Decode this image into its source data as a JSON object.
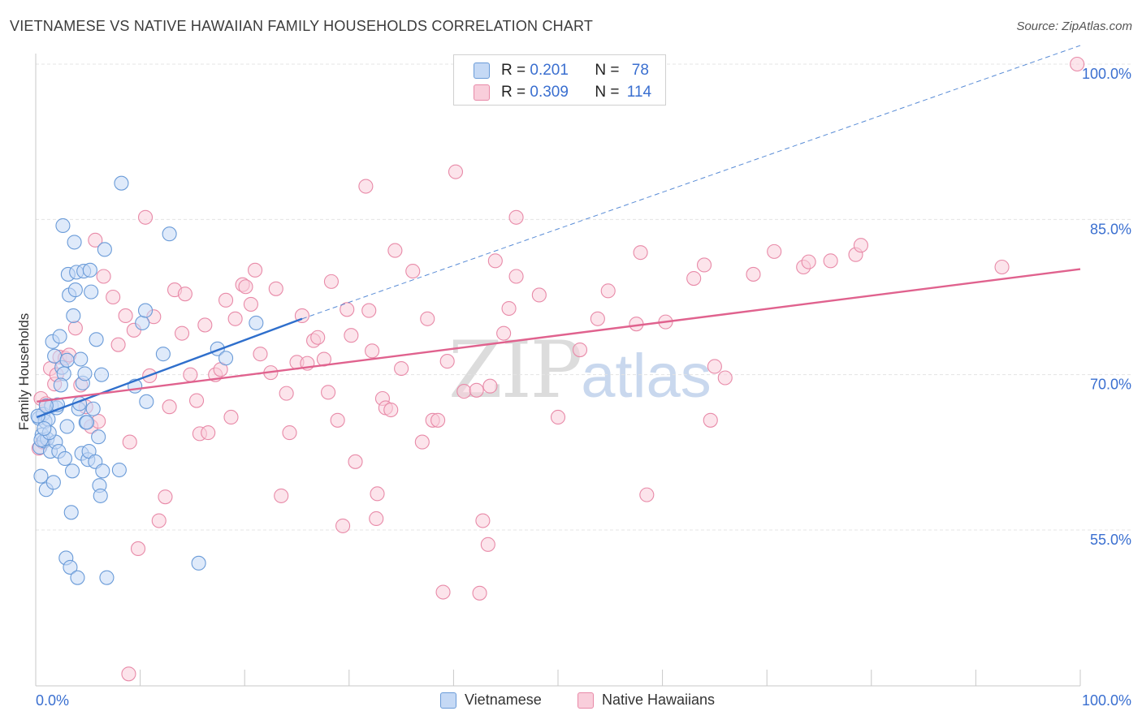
{
  "header": {
    "title": "VIETNAMESE VS NATIVE HAWAIIAN FAMILY HOUSEHOLDS CORRELATION CHART",
    "source": "Source: ZipAtlas.com"
  },
  "watermark": {
    "zip": "ZIP",
    "atlas": "atlas"
  },
  "legend_top": {
    "rows": [
      {
        "r_label": "R =",
        "r_value": "0.201",
        "n_label": "N =",
        "n_value": "78"
      },
      {
        "r_label": "R =",
        "r_value": "0.309",
        "n_label": "N =",
        "n_value": "114"
      }
    ]
  },
  "colors": {
    "vietnamese_fill": "#c5d9f5",
    "vietnamese_stroke": "#6a9bd8",
    "vietnamese_line": "#2f6fcc",
    "hawaiian_fill": "#f9cedb",
    "hawaiian_stroke": "#e88aa8",
    "hawaiian_line": "#e0628e",
    "tick_label": "#3a6fd0",
    "grid": "#e4e4e4"
  },
  "chart_data": {
    "type": "scatter",
    "title": "VIETNAMESE VS NATIVE HAWAIIAN FAMILY HOUSEHOLDS CORRELATION CHART",
    "xlabel": "",
    "ylabel": "Family Households",
    "xlim": [
      0,
      100
    ],
    "ylim": [
      38,
      102
    ],
    "x_tick_labels": [
      "0.0%",
      "100.0%"
    ],
    "y_ticks": [
      55,
      70,
      85,
      100
    ],
    "y_tick_labels": [
      "55.0%",
      "70.0%",
      "85.0%",
      "100.0%"
    ],
    "grid": "horizontal dashed",
    "legend": "bottom-center",
    "series": [
      {
        "name": "Vietnamese",
        "r": 0.201,
        "n": 78,
        "trend": {
          "x0": 0.1,
          "y0": 65.9,
          "x1": 25.5,
          "y1": 75.4,
          "dash_x1": 100,
          "dash_y1": 101.8
        },
        "points": [
          [
            0.3,
            65.8
          ],
          [
            0.4,
            63.0
          ],
          [
            0.5,
            60.2
          ],
          [
            0.6,
            64.2
          ],
          [
            0.7,
            66.2
          ],
          [
            0.8,
            63.6
          ],
          [
            0.9,
            65.5
          ],
          [
            1.0,
            58.9
          ],
          [
            1.1,
            63.8
          ],
          [
            1.2,
            65.7
          ],
          [
            1.4,
            62.6
          ],
          [
            1.5,
            67.0
          ],
          [
            1.6,
            73.2
          ],
          [
            1.7,
            59.6
          ],
          [
            1.8,
            71.8
          ],
          [
            1.9,
            63.5
          ],
          [
            2.0,
            66.8
          ],
          [
            2.1,
            67.1
          ],
          [
            2.2,
            62.6
          ],
          [
            2.3,
            73.7
          ],
          [
            2.5,
            70.7
          ],
          [
            2.6,
            84.4
          ],
          [
            2.7,
            70.1
          ],
          [
            2.8,
            61.9
          ],
          [
            2.9,
            52.3
          ],
          [
            3.0,
            71.4
          ],
          [
            3.1,
            79.7
          ],
          [
            3.2,
            77.7
          ],
          [
            3.3,
            51.4
          ],
          [
            3.4,
            56.7
          ],
          [
            3.5,
            60.7
          ],
          [
            3.6,
            75.7
          ],
          [
            3.7,
            82.8
          ],
          [
            3.8,
            78.2
          ],
          [
            3.9,
            79.9
          ],
          [
            4.0,
            50.4
          ],
          [
            4.1,
            66.7
          ],
          [
            4.2,
            67.2
          ],
          [
            4.3,
            71.5
          ],
          [
            4.4,
            62.4
          ],
          [
            4.5,
            69.2
          ],
          [
            4.6,
            80.0
          ],
          [
            4.7,
            70.1
          ],
          [
            4.8,
            65.4
          ],
          [
            4.9,
            65.4
          ],
          [
            5.0,
            61.8
          ],
          [
            5.1,
            62.6
          ],
          [
            5.2,
            80.1
          ],
          [
            5.3,
            78.0
          ],
          [
            5.5,
            66.7
          ],
          [
            5.7,
            61.6
          ],
          [
            5.8,
            73.4
          ],
          [
            6.0,
            64.0
          ],
          [
            6.1,
            59.3
          ],
          [
            6.2,
            58.3
          ],
          [
            6.3,
            70.0
          ],
          [
            6.4,
            60.7
          ],
          [
            6.6,
            82.1
          ],
          [
            6.8,
            50.4
          ],
          [
            8.0,
            60.8
          ],
          [
            8.2,
            88.5
          ],
          [
            9.5,
            68.9
          ],
          [
            10.2,
            75.0
          ],
          [
            10.5,
            76.2
          ],
          [
            10.6,
            67.4
          ],
          [
            12.2,
            72.0
          ],
          [
            12.8,
            83.6
          ],
          [
            15.6,
            51.8
          ],
          [
            17.4,
            72.5
          ],
          [
            18.2,
            71.6
          ],
          [
            21.1,
            75.0
          ],
          [
            0.2,
            66.0
          ],
          [
            0.5,
            63.7
          ],
          [
            1.3,
            64.4
          ],
          [
            2.4,
            69.0
          ],
          [
            3.0,
            65.0
          ],
          [
            1.0,
            67.0
          ],
          [
            0.8,
            64.8
          ]
        ]
      },
      {
        "name": "Native Hawaiians",
        "r": 0.309,
        "n": 114,
        "trend": {
          "x0": 0.1,
          "y0": 67.4,
          "x1": 100,
          "y1": 80.2
        },
        "points": [
          [
            0.3,
            62.9
          ],
          [
            0.5,
            67.7
          ],
          [
            0.7,
            63.5
          ],
          [
            1.0,
            67.2
          ],
          [
            1.4,
            70.6
          ],
          [
            1.8,
            69.1
          ],
          [
            2.3,
            71.7
          ],
          [
            2.8,
            71.6
          ],
          [
            3.2,
            71.9
          ],
          [
            3.8,
            74.5
          ],
          [
            4.3,
            69.0
          ],
          [
            4.8,
            66.9
          ],
          [
            5.3,
            65.0
          ],
          [
            5.7,
            83.0
          ],
          [
            6.5,
            79.5
          ],
          [
            7.4,
            77.5
          ],
          [
            7.9,
            72.9
          ],
          [
            8.6,
            75.7
          ],
          [
            8.9,
            41.1
          ],
          [
            9.0,
            63.5
          ],
          [
            9.4,
            74.3
          ],
          [
            9.8,
            53.2
          ],
          [
            10.5,
            85.2
          ],
          [
            10.9,
            69.9
          ],
          [
            11.3,
            75.6
          ],
          [
            11.8,
            55.9
          ],
          [
            12.4,
            58.2
          ],
          [
            12.8,
            66.9
          ],
          [
            13.3,
            78.2
          ],
          [
            14.0,
            74.0
          ],
          [
            14.3,
            77.8
          ],
          [
            14.8,
            70.0
          ],
          [
            15.4,
            67.5
          ],
          [
            15.7,
            64.3
          ],
          [
            16.2,
            74.8
          ],
          [
            16.5,
            64.4
          ],
          [
            17.2,
            70.0
          ],
          [
            17.7,
            70.5
          ],
          [
            18.2,
            77.2
          ],
          [
            18.7,
            65.9
          ],
          [
            19.1,
            75.4
          ],
          [
            19.8,
            78.7
          ],
          [
            20.1,
            78.5
          ],
          [
            20.6,
            76.8
          ],
          [
            21.0,
            80.1
          ],
          [
            21.5,
            72.0
          ],
          [
            22.5,
            70.2
          ],
          [
            23.0,
            78.3
          ],
          [
            23.5,
            58.3
          ],
          [
            24.0,
            68.2
          ],
          [
            24.3,
            64.4
          ],
          [
            25.0,
            71.2
          ],
          [
            25.5,
            75.7
          ],
          [
            26.0,
            71.1
          ],
          [
            26.6,
            73.3
          ],
          [
            27.0,
            73.6
          ],
          [
            27.6,
            71.5
          ],
          [
            28.0,
            68.3
          ],
          [
            28.3,
            79.0
          ],
          [
            28.9,
            65.6
          ],
          [
            29.4,
            55.4
          ],
          [
            29.8,
            76.3
          ],
          [
            30.2,
            73.8
          ],
          [
            30.6,
            61.6
          ],
          [
            31.6,
            88.2
          ],
          [
            31.9,
            76.2
          ],
          [
            32.2,
            72.3
          ],
          [
            32.6,
            56.1
          ],
          [
            32.7,
            58.5
          ],
          [
            33.2,
            67.7
          ],
          [
            33.5,
            66.8
          ],
          [
            34.0,
            66.6
          ],
          [
            34.4,
            82.0
          ],
          [
            35.0,
            70.6
          ],
          [
            36.1,
            80.0
          ],
          [
            37.0,
            63.5
          ],
          [
            37.5,
            75.4
          ],
          [
            38.0,
            65.6
          ],
          [
            38.5,
            65.6
          ],
          [
            39.0,
            49.0
          ],
          [
            39.4,
            71.3
          ],
          [
            40.2,
            89.6
          ],
          [
            41.0,
            68.4
          ],
          [
            42.2,
            68.5
          ],
          [
            42.5,
            48.9
          ],
          [
            42.8,
            55.9
          ],
          [
            43.3,
            53.6
          ],
          [
            43.5,
            68.9
          ],
          [
            44.0,
            81.0
          ],
          [
            44.8,
            74.0
          ],
          [
            45.3,
            76.4
          ],
          [
            46.0,
            79.5
          ],
          [
            48.2,
            77.7
          ],
          [
            50.0,
            65.9
          ],
          [
            52.1,
            72.4
          ],
          [
            53.8,
            75.4
          ],
          [
            54.8,
            78.1
          ],
          [
            57.5,
            74.9
          ],
          [
            57.9,
            81.8
          ],
          [
            58.5,
            58.4
          ],
          [
            60.3,
            75.1
          ],
          [
            63.0,
            79.3
          ],
          [
            64.0,
            80.6
          ],
          [
            64.6,
            65.6
          ],
          [
            65.0,
            70.8
          ],
          [
            66.0,
            69.7
          ],
          [
            68.7,
            79.7
          ],
          [
            70.7,
            81.9
          ],
          [
            73.5,
            80.4
          ],
          [
            74.0,
            80.9
          ],
          [
            76.1,
            81.0
          ],
          [
            78.5,
            81.6
          ],
          [
            79.0,
            82.5
          ],
          [
            92.5,
            80.4
          ],
          [
            99.7,
            100.0
          ],
          [
            46.0,
            85.2
          ],
          [
            2.0,
            70.0
          ],
          [
            6.0,
            65.5
          ]
        ]
      }
    ]
  },
  "legend_bottom": {
    "items": [
      {
        "label": "Vietnamese"
      },
      {
        "label": "Native Hawaiians"
      }
    ]
  }
}
